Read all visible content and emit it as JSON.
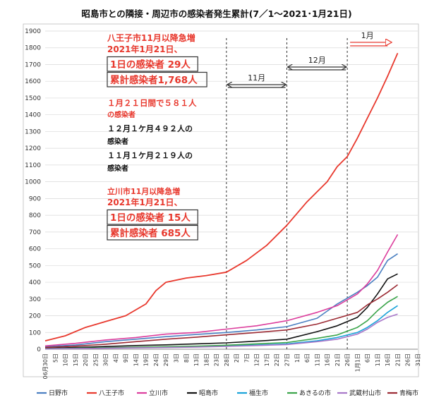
{
  "chart_data": {
    "type": "line",
    "title": "昭島市との隣接・周辺市の感染者発生累計(7／1〜2021･1月21日)",
    "ylim": [
      0,
      1900
    ],
    "yticks": [
      0,
      100,
      200,
      300,
      400,
      500,
      600,
      700,
      800,
      900,
      1000,
      1100,
      1200,
      1300,
      1400,
      1500,
      1600,
      1700,
      1800,
      1900
    ],
    "grid": true,
    "legend_position": "bottom",
    "x_tick_labels": [
      "06月30日",
      "5日",
      "10日",
      "15日",
      "20日",
      "25日",
      "30日",
      "4日",
      "9日",
      "14日",
      "19日",
      "24日",
      "29日",
      "3日",
      "8日",
      "13日",
      "18日",
      "23日",
      "28日",
      "2日",
      "7日",
      "12日",
      "17日",
      "22日",
      "27日",
      "1日",
      "6日",
      "11日",
      "16日",
      "21日",
      "26日",
      "1月1日",
      "6日",
      "11日",
      "16日",
      "21日",
      "26日",
      "31日"
    ],
    "x_index_range": [
      0,
      37
    ],
    "series": [
      {
        "name": "日野市",
        "color": "#4a7fc1",
        "x": [
          0,
          3,
          6,
          9,
          12,
          15,
          18,
          21,
          24,
          27,
          29,
          31,
          32,
          33,
          34,
          35
        ],
        "values": [
          15,
          25,
          45,
          60,
          75,
          88,
          100,
          115,
          135,
          185,
          270,
          340,
          380,
          430,
          530,
          570
        ]
      },
      {
        "name": "八王子市",
        "color": "#e8382d",
        "x": [
          0,
          2,
          4,
          6,
          8,
          10,
          11,
          12,
          14,
          16,
          18,
          20,
          22,
          24,
          26,
          28,
          29,
          30,
          31,
          32,
          33,
          34,
          35
        ],
        "values": [
          50,
          80,
          130,
          165,
          200,
          270,
          350,
          400,
          425,
          440,
          460,
          530,
          620,
          740,
          880,
          1000,
          1090,
          1150,
          1260,
          1380,
          1500,
          1630,
          1768
        ]
      },
      {
        "name": "立川市",
        "color": "#dc3d9c",
        "x": [
          0,
          3,
          6,
          9,
          12,
          15,
          18,
          21,
          24,
          27,
          29,
          31,
          32,
          33,
          34,
          35
        ],
        "values": [
          20,
          35,
          55,
          70,
          90,
          100,
          120,
          140,
          170,
          220,
          260,
          330,
          390,
          470,
          580,
          685
        ]
      },
      {
        "name": "昭島市",
        "color": "#111111",
        "x": [
          0,
          3,
          6,
          9,
          12,
          15,
          18,
          21,
          24,
          27,
          29,
          31,
          32,
          33,
          34,
          35
        ],
        "values": [
          5,
          10,
          16,
          22,
          26,
          32,
          38,
          48,
          60,
          105,
          140,
          190,
          250,
          330,
          420,
          450
        ]
      },
      {
        "name": "福生市",
        "color": "#1aa3d9",
        "x": [
          0,
          3,
          6,
          9,
          12,
          15,
          18,
          21,
          24,
          27,
          29,
          31,
          32,
          33,
          34,
          35
        ],
        "values": [
          3,
          5,
          8,
          10,
          12,
          15,
          20,
          25,
          32,
          50,
          70,
          100,
          130,
          170,
          220,
          260
        ]
      },
      {
        "name": "あきるの市",
        "color": "#3aa44a",
        "x": [
          0,
          3,
          6,
          9,
          12,
          15,
          18,
          21,
          24,
          27,
          29,
          31,
          32,
          33,
          34,
          35
        ],
        "values": [
          3,
          6,
          9,
          12,
          15,
          18,
          24,
          32,
          40,
          65,
          85,
          130,
          170,
          230,
          280,
          315
        ]
      },
      {
        "name": "武蔵村山市",
        "color": "#a877c9",
        "x": [
          0,
          3,
          6,
          9,
          12,
          15,
          18,
          21,
          24,
          27,
          29,
          31,
          32,
          33,
          34,
          35
        ],
        "values": [
          2,
          4,
          6,
          8,
          10,
          13,
          17,
          22,
          28,
          45,
          60,
          90,
          120,
          160,
          190,
          210
        ]
      },
      {
        "name": "青梅市",
        "color": "#9b2a33",
        "x": [
          0,
          3,
          6,
          9,
          12,
          15,
          18,
          21,
          24,
          27,
          29,
          31,
          32,
          33,
          34,
          35
        ],
        "values": [
          10,
          18,
          30,
          45,
          60,
          72,
          86,
          100,
          115,
          150,
          185,
          220,
          265,
          300,
          340,
          385
        ]
      }
    ],
    "periods": [
      {
        "label": "11月",
        "from_index": 18,
        "to_index": 24,
        "arrow": "double"
      },
      {
        "label": "12月",
        "from_index": 24,
        "to_index": 30,
        "arrow": "double"
      },
      {
        "label": "1月",
        "from_index": 30,
        "to_index": 34,
        "arrow": "right"
      }
    ],
    "annotations": [
      {
        "lines": [
          {
            "text": "八王子市11月以降急増",
            "color": "red",
            "boxed": false
          },
          {
            "text": "2021年1月21日、",
            "color": "red",
            "boxed": false
          },
          {
            "text": "1日の感染者 29人",
            "color": "red",
            "boxed": true
          },
          {
            "text": "累計感染者1,768人",
            "color": "red",
            "boxed": true
          }
        ]
      },
      {
        "lines": [
          {
            "text": "１月２１日間で５８１人",
            "color": "red",
            "boxed": false
          },
          {
            "text": "の感染者",
            "color": "red",
            "boxed": false
          },
          {
            "text": "１２月１ケ月４９２人の",
            "color": "black",
            "boxed": false
          },
          {
            "text": "感染者",
            "color": "black",
            "boxed": false
          },
          {
            "text": "１１月１ケ月２１９人の",
            "color": "black",
            "boxed": false
          },
          {
            "text": "感染者",
            "color": "black",
            "boxed": false
          }
        ]
      },
      {
        "lines": [
          {
            "text": "立川市11月以降急増",
            "color": "red",
            "boxed": false
          },
          {
            "text": "2021年1月21日、",
            "color": "red",
            "boxed": false
          },
          {
            "text": "1日の感染者 15人",
            "color": "red",
            "boxed": true
          },
          {
            "text": "累計感染者 685人",
            "color": "red",
            "boxed": true
          }
        ]
      }
    ]
  }
}
